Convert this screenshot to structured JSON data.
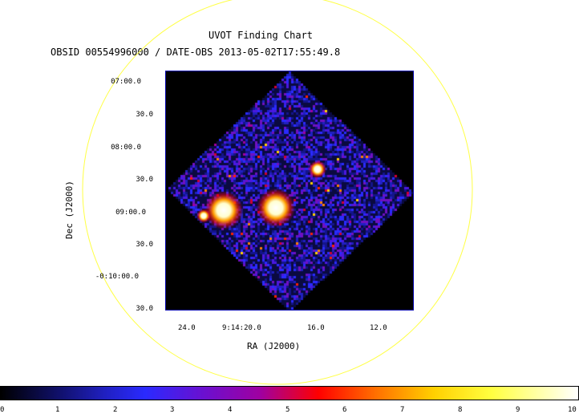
{
  "header": {
    "title": "UVOT Finding Chart",
    "subtitle": "OBSID 00554996000 / DATE-OBS 2013-05-02T17:55:49.8"
  },
  "axes": {
    "xlabel": "RA (J2000)",
    "ylabel": "Dec (J2000)",
    "ra_ticks": [
      "24.0",
      "9:14:20.0",
      "16.0",
      "12.0"
    ],
    "dec_ticks": [
      "07:00.0",
      "30.0",
      "08:00.0",
      "30.0",
      "09:00.0",
      "30.0",
      "-0:10:00.0",
      "30.0"
    ]
  },
  "colorbar": {
    "ticks": [
      "0",
      "1",
      "2",
      "3",
      "4",
      "5",
      "6",
      "7",
      "8",
      "9",
      "10"
    ]
  },
  "colors": {
    "circle": "#ffff44",
    "frame": "#0000aa"
  }
}
